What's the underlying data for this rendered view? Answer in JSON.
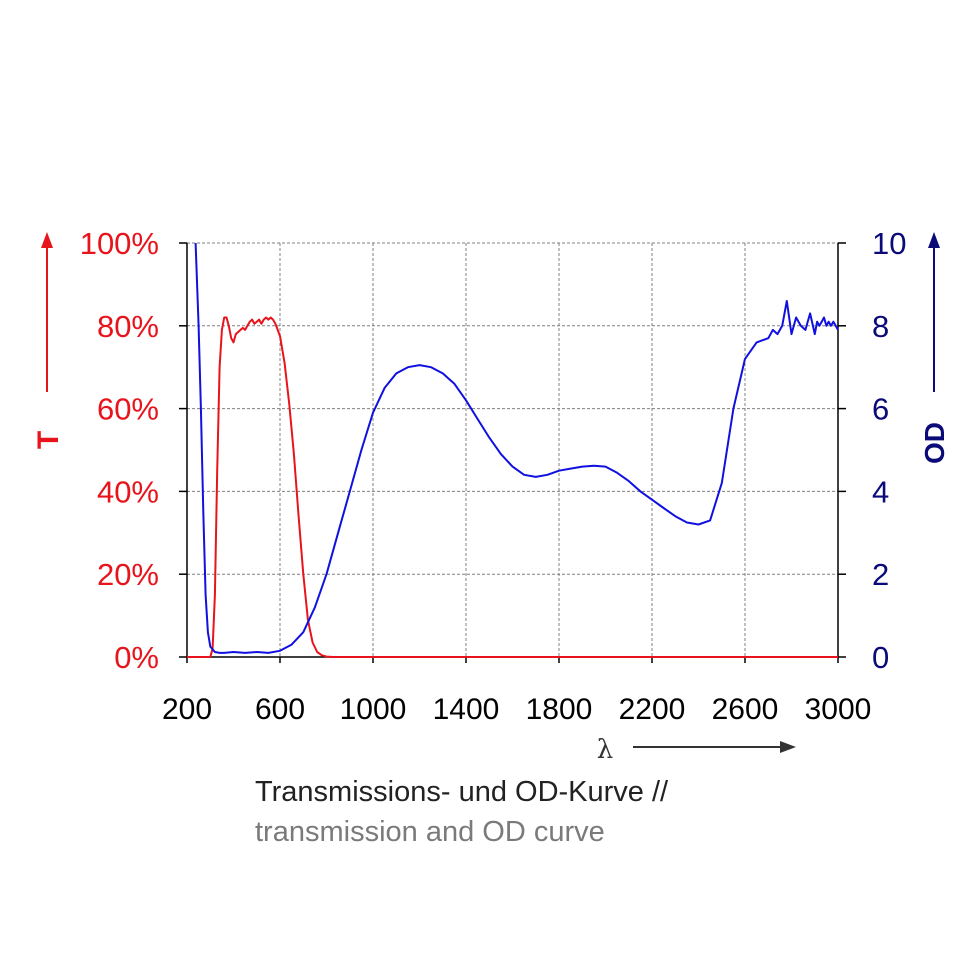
{
  "chart_data": {
    "type": "line",
    "xlabel": "λ",
    "x_ticks": [
      "200",
      "600",
      "1000",
      "1400",
      "1800",
      "2200",
      "2600",
      "3000"
    ],
    "xlim": [
      200,
      3000
    ],
    "y_left": {
      "label": "T",
      "ticks": [
        "0%",
        "20%",
        "40%",
        "60%",
        "80%",
        "100%"
      ],
      "ylim": [
        0,
        100
      ],
      "unit": "%"
    },
    "y_right": {
      "label": "OD",
      "ticks": [
        "0",
        "2",
        "4",
        "6",
        "8",
        "10"
      ],
      "ylim": [
        0,
        10
      ]
    },
    "grid": true,
    "colors": {
      "T": "#e8141c",
      "OD": "#1010e0",
      "left_axis_text": "#e8141c",
      "right_axis_text": "#0a0a78"
    },
    "series": [
      {
        "axis": "left",
        "x": [
          200,
          300,
          310,
          320,
          330,
          340,
          350,
          360,
          370,
          380,
          390,
          400,
          410,
          420,
          430,
          440,
          450,
          460,
          470,
          480,
          490,
          500,
          510,
          520,
          530,
          540,
          550,
          560,
          570,
          580,
          590,
          600,
          620,
          640,
          660,
          680,
          700,
          720,
          740,
          760,
          780,
          800,
          830,
          860,
          900,
          1000,
          1500,
          2000,
          2500,
          3000
        ],
        "y": [
          0,
          0,
          2,
          15,
          45,
          70,
          79,
          82,
          82,
          80,
          77,
          76,
          78,
          78.5,
          79,
          79.5,
          79,
          80,
          81,
          81.5,
          80.5,
          81,
          81.5,
          80.5,
          81.5,
          82,
          81.5,
          82,
          81.5,
          80.5,
          79,
          77.5,
          71,
          61,
          49,
          34,
          20,
          9,
          3.5,
          1.2,
          0.4,
          0.1,
          0,
          0,
          0,
          0,
          0,
          0,
          0,
          0
        ]
      },
      {
        "axis": "right",
        "x": [
          237,
          250,
          260,
          270,
          280,
          290,
          300,
          320,
          340,
          360,
          400,
          450,
          500,
          550,
          600,
          650,
          700,
          750,
          800,
          850,
          900,
          950,
          1000,
          1050,
          1100,
          1150,
          1200,
          1250,
          1300,
          1350,
          1400,
          1450,
          1500,
          1550,
          1600,
          1650,
          1700,
          1750,
          1800,
          1850,
          1900,
          1950,
          2000,
          2050,
          2100,
          2150,
          2200,
          2250,
          2300,
          2350,
          2400,
          2450,
          2500,
          2550,
          2600,
          2650,
          2700,
          2720,
          2740,
          2760,
          2780,
          2800,
          2820,
          2840,
          2860,
          2880,
          2900,
          2910,
          2920,
          2930,
          2940,
          2950,
          2960,
          2970,
          2980,
          2990,
          3000
        ],
        "y": [
          10,
          8,
          6,
          3.5,
          1.5,
          0.6,
          0.25,
          0.12,
          0.1,
          0.1,
          0.12,
          0.1,
          0.12,
          0.1,
          0.15,
          0.3,
          0.6,
          1.2,
          2.0,
          3.0,
          4.0,
          5.0,
          5.9,
          6.5,
          6.85,
          7.0,
          7.05,
          7.0,
          6.85,
          6.6,
          6.2,
          5.75,
          5.3,
          4.9,
          4.6,
          4.4,
          4.35,
          4.4,
          4.5,
          4.55,
          4.6,
          4.62,
          4.6,
          4.45,
          4.25,
          4.0,
          3.8,
          3.6,
          3.4,
          3.25,
          3.2,
          3.3,
          4.2,
          6.0,
          7.2,
          7.6,
          7.7,
          7.9,
          7.8,
          8.0,
          8.6,
          7.8,
          8.2,
          8.0,
          7.9,
          8.3,
          7.8,
          8.1,
          8.0,
          8.1,
          8.2,
          8.0,
          8.1,
          8.0,
          8.1,
          8.0,
          7.9
        ]
      }
    ]
  },
  "caption": {
    "line1": "Transmissions- und OD-Kurve //",
    "line2": "transmission and OD curve"
  }
}
